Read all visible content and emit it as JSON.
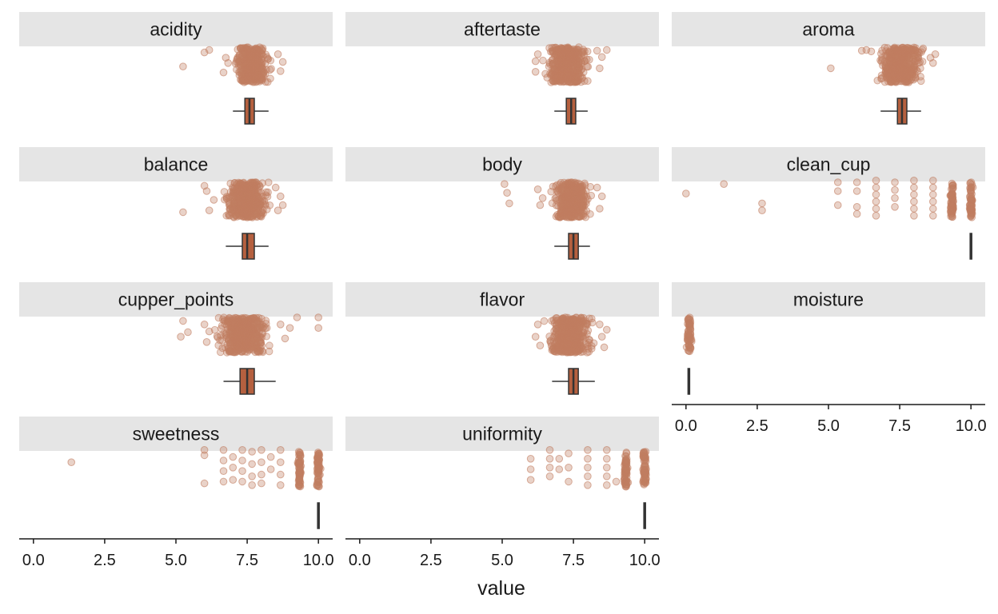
{
  "chart_data": {
    "type": "scatter",
    "subtype": "faceted jittered strip plot with boxplots",
    "title": "",
    "xlabel": "value",
    "ylabel": "",
    "xlim": [
      -0.5,
      10.5
    ],
    "x_ticks": [
      0,
      2.5,
      5,
      7.5,
      10
    ],
    "x_tick_labels": [
      "0.0",
      "2.5",
      "5.0",
      "7.5",
      "10.0"
    ],
    "grid": false,
    "legend": "none",
    "colors": {
      "points": "#c17d61",
      "box_fill": "#b5603f",
      "box_line": "#333333",
      "strip_bg": "#e5e5e5",
      "axis": "#1a1a1a"
    },
    "facets": [
      {
        "name": "acidity",
        "box": {
          "min": 7.0,
          "q1": 7.42,
          "median": 7.58,
          "q3": 7.75,
          "max": 8.25
        },
        "points": [
          {
            "x": 5.25,
            "y": -0.05
          },
          {
            "x": 6.0,
            "y": 0.35
          },
          {
            "x": 6.17,
            "y": 0.42
          },
          {
            "x": 6.67,
            "y": -0.22
          },
          {
            "x": 6.75,
            "y": 0.2
          },
          {
            "x": 6.83,
            "y": 0.05
          },
          {
            "x": 8.58,
            "y": 0.3
          },
          {
            "x": 8.67,
            "y": -0.18
          },
          {
            "x": 8.75,
            "y": 0.08
          }
        ],
        "dense": [
          {
            "from": 6.9,
            "to": 8.42
          }
        ]
      },
      {
        "name": "aftertaste",
        "box": {
          "min": 6.83,
          "q1": 7.25,
          "median": 7.42,
          "q3": 7.58,
          "max": 8.0
        },
        "points": [
          {
            "x": 6.17,
            "y": 0.1
          },
          {
            "x": 6.17,
            "y": -0.2
          },
          {
            "x": 6.25,
            "y": 0.3
          },
          {
            "x": 8.33,
            "y": 0.4
          },
          {
            "x": 8.42,
            "y": -0.1
          },
          {
            "x": 8.5,
            "y": 0.22
          },
          {
            "x": 8.67,
            "y": 0.42
          }
        ],
        "dense": [
          {
            "from": 6.3,
            "to": 8.25
          }
        ]
      },
      {
        "name": "aroma",
        "box": {
          "min": 6.83,
          "q1": 7.42,
          "median": 7.58,
          "q3": 7.75,
          "max": 8.25
        },
        "points": [
          {
            "x": 5.08,
            "y": -0.1
          },
          {
            "x": 6.17,
            "y": 0.4
          },
          {
            "x": 6.33,
            "y": 0.42
          },
          {
            "x": 6.5,
            "y": 0.38
          },
          {
            "x": 8.58,
            "y": 0.2
          },
          {
            "x": 8.67,
            "y": 0.05
          },
          {
            "x": 8.75,
            "y": 0.3
          }
        ],
        "dense": [
          {
            "from": 6.6,
            "to": 8.5
          }
        ]
      },
      {
        "name": "balance",
        "box": {
          "min": 6.75,
          "q1": 7.33,
          "median": 7.5,
          "q3": 7.75,
          "max": 8.25
        },
        "points": [
          {
            "x": 5.25,
            "y": -0.35
          },
          {
            "x": 6.0,
            "y": 0.4
          },
          {
            "x": 6.08,
            "y": 0.25
          },
          {
            "x": 6.17,
            "y": -0.3
          },
          {
            "x": 6.33,
            "y": 0.0
          },
          {
            "x": 8.5,
            "y": 0.35
          },
          {
            "x": 8.58,
            "y": -0.3
          },
          {
            "x": 8.67,
            "y": 0.1
          },
          {
            "x": 8.75,
            "y": -0.15
          }
        ],
        "dense": [
          {
            "from": 6.5,
            "to": 8.42
          }
        ]
      },
      {
        "name": "body",
        "box": {
          "min": 6.83,
          "q1": 7.33,
          "median": 7.5,
          "q3": 7.67,
          "max": 8.08
        },
        "points": [
          {
            "x": 5.08,
            "y": 0.45
          },
          {
            "x": 5.17,
            "y": 0.2
          },
          {
            "x": 5.25,
            "y": -0.1
          },
          {
            "x": 6.25,
            "y": 0.3
          },
          {
            "x": 6.33,
            "y": -0.15
          },
          {
            "x": 6.42,
            "y": 0.05
          },
          {
            "x": 8.33,
            "y": 0.35
          },
          {
            "x": 8.42,
            "y": -0.25
          },
          {
            "x": 8.5,
            "y": 0.1
          }
        ],
        "dense": [
          {
            "from": 6.6,
            "to": 8.25
          }
        ]
      },
      {
        "name": "clean_cup",
        "box": {
          "min": 10.0,
          "q1": 10.0,
          "median": 10.0,
          "q3": 10.0,
          "max": 10.0
        },
        "points": [
          {
            "x": 0.0,
            "y": 0.18
          },
          {
            "x": 1.33,
            "y": 0.45
          },
          {
            "x": 2.67,
            "y": -0.1
          },
          {
            "x": 2.67,
            "y": -0.3
          },
          {
            "x": 5.33,
            "y": 0.5
          },
          {
            "x": 5.33,
            "y": 0.25
          },
          {
            "x": 5.33,
            "y": -0.15
          },
          {
            "x": 6.0,
            "y": 0.5
          },
          {
            "x": 6.0,
            "y": 0.25
          },
          {
            "x": 6.0,
            "y": -0.2
          },
          {
            "x": 6.0,
            "y": -0.4
          },
          {
            "x": 6.67,
            "y": 0.55
          },
          {
            "x": 6.67,
            "y": 0.35
          },
          {
            "x": 6.67,
            "y": 0.15
          },
          {
            "x": 6.67,
            "y": -0.05
          },
          {
            "x": 6.67,
            "y": -0.25
          },
          {
            "x": 6.67,
            "y": -0.45
          },
          {
            "x": 7.33,
            "y": 0.5
          },
          {
            "x": 7.33,
            "y": 0.28
          },
          {
            "x": 7.33,
            "y": 0.05
          },
          {
            "x": 7.33,
            "y": -0.2
          },
          {
            "x": 8.0,
            "y": 0.55
          },
          {
            "x": 8.0,
            "y": 0.35
          },
          {
            "x": 8.0,
            "y": 0.15
          },
          {
            "x": 8.0,
            "y": -0.05
          },
          {
            "x": 8.0,
            "y": -0.25
          },
          {
            "x": 8.0,
            "y": -0.45
          },
          {
            "x": 8.67,
            "y": 0.55
          },
          {
            "x": 8.67,
            "y": 0.35
          },
          {
            "x": 8.67,
            "y": 0.15
          },
          {
            "x": 8.67,
            "y": -0.05
          },
          {
            "x": 8.67,
            "y": -0.25
          },
          {
            "x": 8.67,
            "y": -0.45
          }
        ],
        "dense": [
          {
            "from": 9.25,
            "to": 9.42
          },
          {
            "from": 9.92,
            "to": 10.08
          }
        ]
      },
      {
        "name": "cupper_points",
        "box": {
          "min": 6.67,
          "q1": 7.25,
          "median": 7.5,
          "q3": 7.75,
          "max": 8.5
        },
        "points": [
          {
            "x": 5.17,
            "y": -0.05
          },
          {
            "x": 5.25,
            "y": 0.4
          },
          {
            "x": 5.42,
            "y": 0.08
          },
          {
            "x": 6.0,
            "y": 0.3
          },
          {
            "x": 6.08,
            "y": -0.2
          },
          {
            "x": 6.17,
            "y": 0.1
          },
          {
            "x": 8.67,
            "y": 0.3
          },
          {
            "x": 8.83,
            "y": -0.1
          },
          {
            "x": 9.0,
            "y": 0.2
          },
          {
            "x": 9.25,
            "y": 0.5
          },
          {
            "x": 10.0,
            "y": 0.5
          },
          {
            "x": 10.0,
            "y": 0.2
          }
        ],
        "dense": [
          {
            "from": 6.3,
            "to": 8.42
          }
        ]
      },
      {
        "name": "flavor",
        "box": {
          "min": 6.75,
          "q1": 7.33,
          "median": 7.5,
          "q3": 7.67,
          "max": 8.25
        },
        "points": [
          {
            "x": 6.17,
            "y": -0.05
          },
          {
            "x": 6.25,
            "y": 0.3
          },
          {
            "x": 6.33,
            "y": -0.3
          },
          {
            "x": 8.42,
            "y": 0.3
          },
          {
            "x": 8.5,
            "y": -0.05
          },
          {
            "x": 8.58,
            "y": -0.35
          },
          {
            "x": 8.67,
            "y": 0.15
          }
        ],
        "dense": [
          {
            "from": 6.4,
            "to": 8.33
          }
        ]
      },
      {
        "name": "moisture",
        "box": {
          "min": 0.1,
          "q1": 0.1,
          "median": 0.11,
          "q3": 0.12,
          "max": 0.12
        },
        "points": [],
        "dense": [
          {
            "from": 0.0,
            "to": 0.25
          }
        ]
      },
      {
        "name": "sweetness",
        "box": {
          "min": 10.0,
          "q1": 10.0,
          "median": 10.0,
          "q3": 10.0,
          "max": 10.0
        },
        "points": [
          {
            "x": 1.33,
            "y": 0.2
          },
          {
            "x": 6.0,
            "y": 0.55
          },
          {
            "x": 6.0,
            "y": 0.4
          },
          {
            "x": 6.0,
            "y": -0.4
          },
          {
            "x": 6.67,
            "y": 0.55
          },
          {
            "x": 6.67,
            "y": 0.25
          },
          {
            "x": 6.67,
            "y": -0.05
          },
          {
            "x": 6.67,
            "y": -0.35
          },
          {
            "x": 7.0,
            "y": 0.35
          },
          {
            "x": 7.0,
            "y": 0.05
          },
          {
            "x": 7.0,
            "y": -0.3
          },
          {
            "x": 7.33,
            "y": 0.55
          },
          {
            "x": 7.33,
            "y": 0.25
          },
          {
            "x": 7.33,
            "y": -0.05
          },
          {
            "x": 7.33,
            "y": -0.35
          },
          {
            "x": 7.67,
            "y": 0.5
          },
          {
            "x": 7.67,
            "y": 0.15
          },
          {
            "x": 7.67,
            "y": -0.2
          },
          {
            "x": 7.67,
            "y": -0.45
          },
          {
            "x": 8.0,
            "y": 0.55
          },
          {
            "x": 8.0,
            "y": 0.2
          },
          {
            "x": 8.0,
            "y": -0.15
          },
          {
            "x": 8.0,
            "y": -0.4
          },
          {
            "x": 8.33,
            "y": 0.35
          },
          {
            "x": 8.33,
            "y": 0.0
          },
          {
            "x": 8.67,
            "y": 0.55
          },
          {
            "x": 8.67,
            "y": 0.2
          },
          {
            "x": 8.67,
            "y": -0.15
          },
          {
            "x": 8.67,
            "y": -0.45
          }
        ],
        "dense": [
          {
            "from": 9.25,
            "to": 9.42
          },
          {
            "from": 9.92,
            "to": 10.08
          }
        ]
      },
      {
        "name": "uniformity",
        "box": {
          "min": 10.0,
          "q1": 10.0,
          "median": 10.0,
          "q3": 10.0,
          "max": 10.0
        },
        "points": [
          {
            "x": 6.0,
            "y": 0.3
          },
          {
            "x": 6.0,
            "y": 0.0
          },
          {
            "x": 6.0,
            "y": -0.3
          },
          {
            "x": 6.67,
            "y": 0.55
          },
          {
            "x": 6.67,
            "y": 0.3
          },
          {
            "x": 6.67,
            "y": 0.05
          },
          {
            "x": 6.67,
            "y": -0.2
          },
          {
            "x": 7.0,
            "y": 0.3
          },
          {
            "x": 7.0,
            "y": 0.0
          },
          {
            "x": 7.33,
            "y": 0.45
          },
          {
            "x": 7.33,
            "y": 0.05
          },
          {
            "x": 7.33,
            "y": -0.35
          },
          {
            "x": 8.0,
            "y": 0.55
          },
          {
            "x": 8.0,
            "y": 0.3
          },
          {
            "x": 8.0,
            "y": 0.05
          },
          {
            "x": 8.0,
            "y": -0.2
          },
          {
            "x": 8.0,
            "y": -0.45
          },
          {
            "x": 8.67,
            "y": 0.55
          },
          {
            "x": 8.67,
            "y": 0.3
          },
          {
            "x": 8.67,
            "y": 0.05
          },
          {
            "x": 8.67,
            "y": -0.2
          },
          {
            "x": 8.67,
            "y": -0.45
          },
          {
            "x": 9.0,
            "y": -0.35
          }
        ],
        "dense": [
          {
            "from": 9.25,
            "to": 9.42
          },
          {
            "from": 9.92,
            "to": 10.08
          }
        ]
      }
    ]
  }
}
